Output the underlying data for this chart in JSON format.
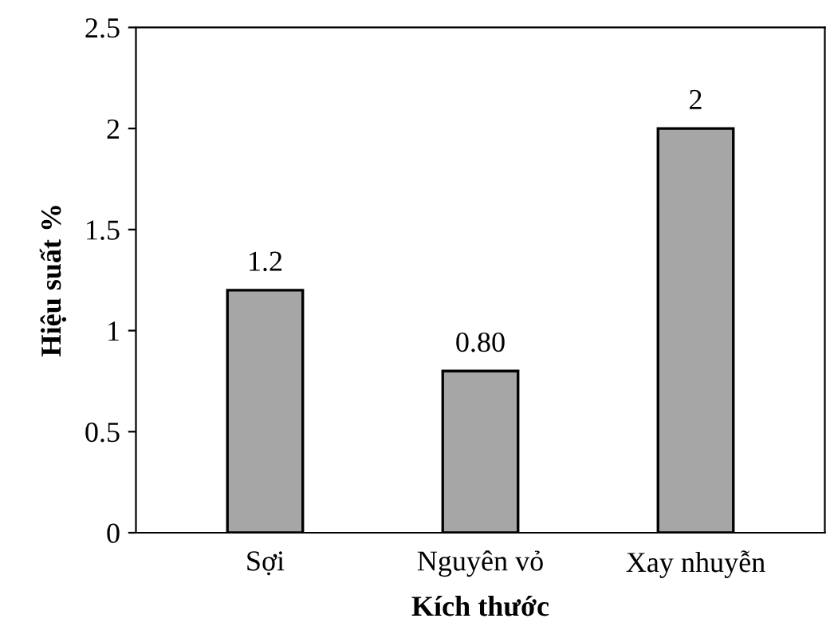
{
  "chart_data": {
    "type": "bar",
    "xlabel": "Kích thước",
    "ylabel": "Hiệu suất %",
    "categories": [
      "Sợi",
      "Nguyên vỏ",
      "Xay nhuyễn"
    ],
    "values": [
      1.2,
      0.8,
      2
    ],
    "value_labels": [
      "1.2",
      "0.80",
      "2"
    ],
    "color": "#a6a6a6",
    "ylim": [
      0,
      2.5
    ],
    "yticks": [
      0,
      0.5,
      1,
      1.5,
      2,
      2.5
    ],
    "grid": false
  }
}
